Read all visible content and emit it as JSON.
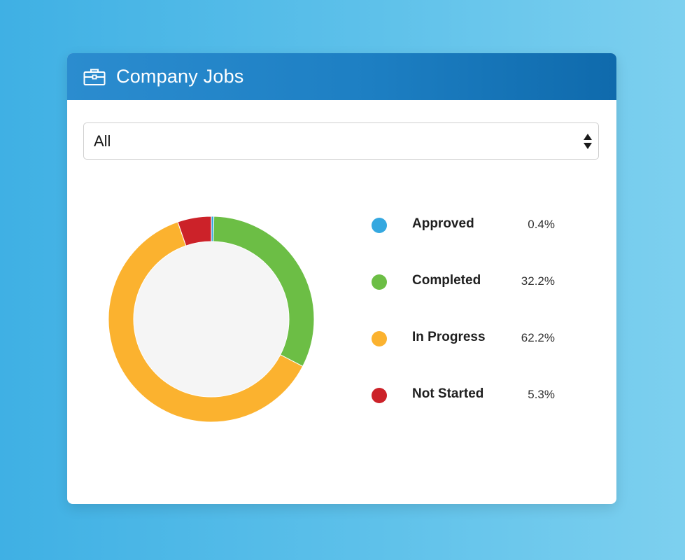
{
  "panel": {
    "title": "Company Jobs",
    "icon": "briefcase-icon"
  },
  "filter": {
    "selected": "All",
    "icon": "sort-arrows-icon"
  },
  "colors": {
    "header_bg": "#1f80c6",
    "approved": "#35a8e0",
    "completed": "#6cbe45",
    "in_progress": "#fbb22f",
    "not_started": "#cc2229",
    "donut_center": "#f5f5f5"
  },
  "chart_data": {
    "type": "pie",
    "variant": "donut",
    "title": "",
    "categories": [
      "Approved",
      "Completed",
      "In Progress",
      "Not Started"
    ],
    "values": [
      0.4,
      32.2,
      62.2,
      5.3
    ],
    "value_labels": [
      "0.4%",
      "32.2%",
      "62.2%",
      "5.3%"
    ],
    "colors": [
      "#35a8e0",
      "#6cbe45",
      "#fbb22f",
      "#cc2229"
    ],
    "legend": "right"
  }
}
